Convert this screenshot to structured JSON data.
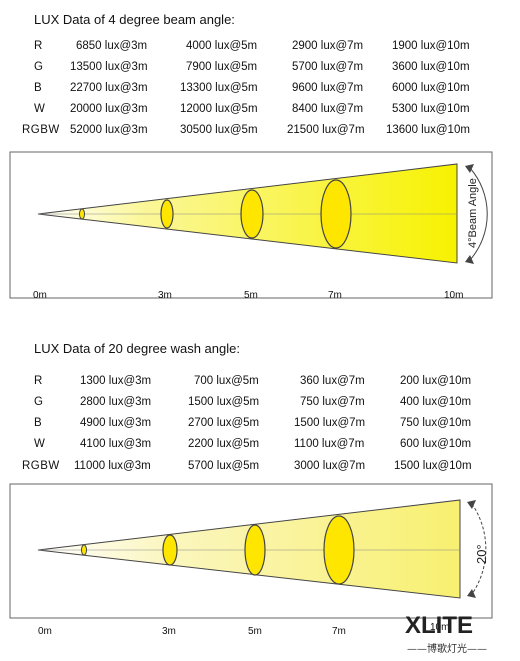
{
  "beam": {
    "title": "LUX Data of 4 degree beam angle:",
    "rows": [
      {
        "label": "R",
        "v": [
          "6850 lux@3m",
          "4000 lux@5m",
          "2900 lux@7m",
          "1900 lux@10m"
        ]
      },
      {
        "label": "G",
        "v": [
          "13500 lux@3m",
          "7900 lux@5m",
          "5700 lux@7m",
          "3600 lux@10m"
        ]
      },
      {
        "label": "B",
        "v": [
          "22700 lux@3m",
          "13300 lux@5m",
          "9600 lux@7m",
          "6000 lux@10m"
        ]
      },
      {
        "label": "W",
        "v": [
          "20000 lux@3m",
          "12000 lux@5m",
          "8400 lux@7m",
          "5300 lux@10m"
        ]
      },
      {
        "label": "RGBW",
        "v": [
          "52000 lux@3m",
          "30500 lux@5m",
          "21500 lux@7m",
          "13600 lux@10m"
        ]
      }
    ],
    "angle_label": "4°Beam Angle",
    "distances": [
      "0m",
      "3m",
      "5m",
      "7m",
      "10m"
    ]
  },
  "wash": {
    "title": "LUX Data of 20 degree wash angle:",
    "rows": [
      {
        "label": "R",
        "v": [
          "1300 lux@3m",
          "700 lux@5m",
          "360 lux@7m",
          "200 lux@10m"
        ]
      },
      {
        "label": "G",
        "v": [
          "2800 lux@3m",
          "1500 lux@5m",
          "750 lux@7m",
          "400 lux@10m"
        ]
      },
      {
        "label": "B",
        "v": [
          "4900 lux@3m",
          "2700 lux@5m",
          "1500 lux@7m",
          "750 lux@10m"
        ]
      },
      {
        "label": "W",
        "v": [
          "4100 lux@3m",
          "2200 lux@5m",
          "1100 lux@7m",
          "600 lux@10m"
        ]
      },
      {
        "label": "RGBW",
        "v": [
          "11000 lux@3m",
          "5700 lux@5m",
          "3000 lux@7m",
          "1500 lux@10m"
        ]
      }
    ],
    "angle_label": "20°",
    "distances": [
      "0m",
      "3m",
      "5m",
      "7m",
      "10m"
    ]
  },
  "logo": {
    "main": "XLITE",
    "sub": "——博歌灯光——"
  },
  "colors": {
    "beam_yellow": "#f7f200",
    "ellipse_yellow": "#ffe600",
    "frame": "#666666"
  }
}
